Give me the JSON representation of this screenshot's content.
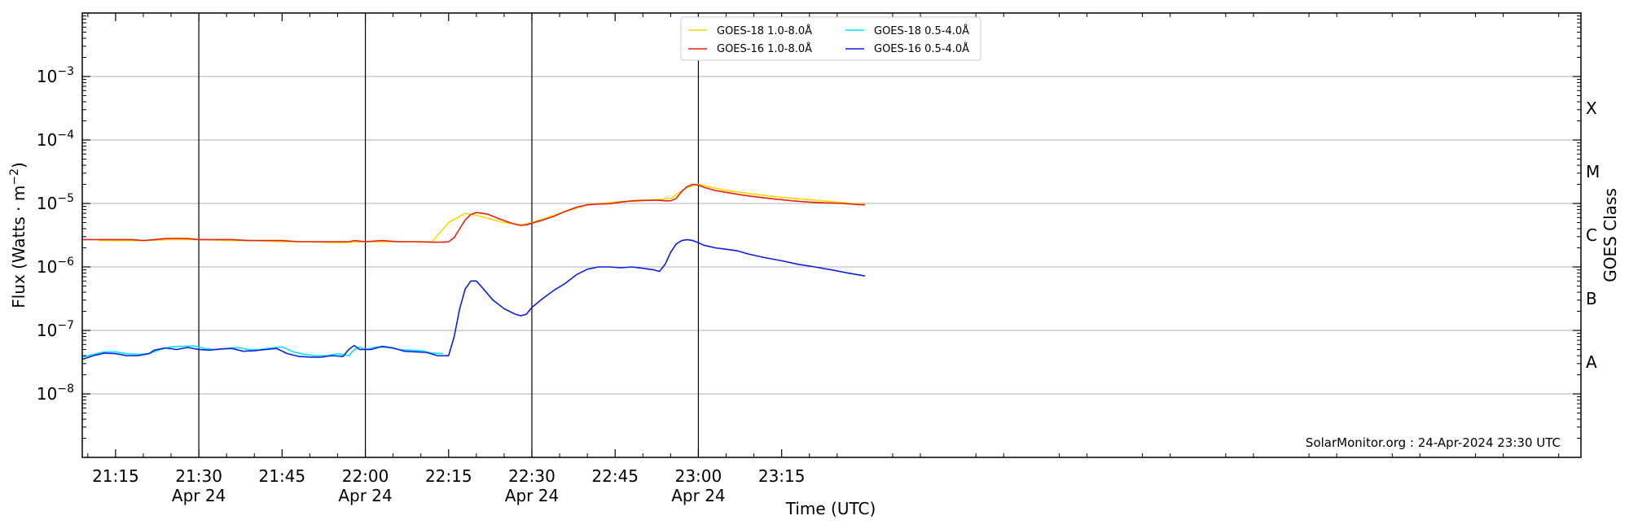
{
  "chart_data": {
    "type": "line",
    "xlabel": "Time (UTC)",
    "ylabel": "Flux (Watts · m⁻²)",
    "ylabel_right": "GOES Class",
    "watermark": "SolarMonitor.org : 24-Apr-2024 23:30 UTC",
    "x_unit": "minutes after 21:00 UTC, 24-Apr-2024",
    "xlim": [
      9,
      279
    ],
    "ylim": [
      1e-09,
      0.01
    ],
    "y_scale": "log",
    "grid": "horizontal at decades",
    "legend_position": "top-center",
    "x_ticks": [
      {
        "value": 15,
        "label": "21:15",
        "date": ""
      },
      {
        "value": 30,
        "label": "21:30",
        "date": "Apr 24"
      },
      {
        "value": 45,
        "label": "21:45",
        "date": ""
      },
      {
        "value": 60,
        "label": "22:00",
        "date": "Apr 24"
      },
      {
        "value": 75,
        "label": "22:15",
        "date": ""
      },
      {
        "value": 90,
        "label": "22:30",
        "date": "Apr 24"
      },
      {
        "value": 105,
        "label": "22:45",
        "date": ""
      },
      {
        "value": 120,
        "label": "23:00",
        "date": "Apr 24"
      },
      {
        "value": 135,
        "label": "23:15",
        "date": ""
      }
    ],
    "y_ticks": [
      {
        "exp": -8,
        "label_base": "10",
        "label_exp": "−8"
      },
      {
        "exp": -7,
        "label_base": "10",
        "label_exp": "−7"
      },
      {
        "exp": -6,
        "label_base": "10",
        "label_exp": "−6"
      },
      {
        "exp": -5,
        "label_base": "10",
        "label_exp": "−5"
      },
      {
        "exp": -4,
        "label_base": "10",
        "label_exp": "−4"
      },
      {
        "exp": -3,
        "label_base": "10",
        "label_exp": "−3"
      }
    ],
    "vlines": [
      30,
      60,
      90,
      120
    ],
    "goes_classes": [
      {
        "label": "A",
        "exp": -7.5
      },
      {
        "label": "B",
        "exp": -6.5
      },
      {
        "label": "C",
        "exp": -5.5
      },
      {
        "label": "M",
        "exp": -4.5
      },
      {
        "label": "X",
        "exp": -3.5
      }
    ],
    "series": [
      {
        "name": "GOES-18 1.0-8.0Å",
        "color": "#ffd700",
        "x": [
          12,
          20,
          25,
          30,
          35,
          40,
          45,
          50,
          55,
          60,
          65,
          70,
          72,
          75,
          78,
          80,
          85,
          88,
          90,
          95,
          100,
          105,
          110,
          115,
          118,
          120,
          125,
          130,
          135,
          140,
          145,
          150
        ],
        "y": [
          2.6e-06,
          2.6e-06,
          2.7e-06,
          2.7e-06,
          2.6e-06,
          2.6e-06,
          2.5e-06,
          2.5e-06,
          2.4e-06,
          2.5e-06,
          2.5e-06,
          2.5e-06,
          2.5e-06,
          5e-06,
          7e-06,
          6.5e-06,
          5e-06,
          4.6e-06,
          5e-06,
          7e-06,
          9.5e-06,
          1.05e-05,
          1.1e-05,
          1.2e-05,
          1.8e-05,
          2e-05,
          1.6e-05,
          1.4e-05,
          1.25e-05,
          1.15e-05,
          1.05e-05,
          9.6e-06
        ]
      },
      {
        "name": "GOES-16 1.0-8.0Å",
        "color": "#e8200f",
        "x": [
          9,
          12,
          15,
          18,
          20,
          22,
          24,
          26,
          28,
          30,
          33,
          36,
          39,
          42,
          45,
          48,
          51,
          54,
          57,
          58,
          60,
          63,
          66,
          69,
          72,
          74,
          75,
          76,
          77,
          78,
          79,
          80,
          82,
          84,
          86,
          87,
          88,
          89,
          90,
          92,
          94,
          96,
          98,
          100,
          102,
          104,
          106,
          108,
          110,
          112,
          113,
          114,
          115,
          116,
          117,
          118,
          119,
          120,
          121,
          123,
          125,
          128,
          131,
          134,
          137,
          140,
          143,
          146,
          149,
          150
        ],
        "y": [
          2.7e-06,
          2.7e-06,
          2.7e-06,
          2.7e-06,
          2.6e-06,
          2.7e-06,
          2.8e-06,
          2.8e-06,
          2.8e-06,
          2.7e-06,
          2.7e-06,
          2.7e-06,
          2.6e-06,
          2.6e-06,
          2.6e-06,
          2.5e-06,
          2.5e-06,
          2.5e-06,
          2.5e-06,
          2.6e-06,
          2.5e-06,
          2.6e-06,
          2.5e-06,
          2.5e-06,
          2.45e-06,
          2.45e-06,
          2.5e-06,
          2.9e-06,
          4e-06,
          5.5e-06,
          6.7e-06,
          7.2e-06,
          6.8e-06,
          5.8e-06,
          5e-06,
          4.7e-06,
          4.5e-06,
          4.6e-06,
          4.9e-06,
          5.5e-06,
          6.3e-06,
          7.5e-06,
          8.7e-06,
          9.5e-06,
          9.8e-06,
          9.9e-06,
          1.05e-05,
          1.1e-05,
          1.12e-05,
          1.13e-05,
          1.12e-05,
          1.1e-05,
          1.1e-05,
          1.2e-05,
          1.55e-05,
          1.85e-05,
          2e-05,
          1.95e-05,
          1.8e-05,
          1.6e-05,
          1.5e-05,
          1.35e-05,
          1.25e-05,
          1.17e-05,
          1.1e-05,
          1.05e-05,
          1.02e-05,
          1e-05,
          9.6e-06,
          9.5e-06
        ]
      },
      {
        "name": "GOES-18 0.5-4.0Å",
        "color": "#00e5ff",
        "x": [
          9,
          11,
          13,
          15,
          17,
          19,
          21,
          23,
          25,
          27,
          29,
          31,
          33,
          35,
          37,
          39,
          41,
          43,
          45,
          47,
          49,
          51,
          53,
          55,
          57,
          58,
          59,
          60,
          62,
          64,
          66,
          68,
          70,
          72,
          74
        ],
        "y": [
          3.8e-08,
          4.2e-08,
          4.6e-08,
          4.6e-08,
          4.3e-08,
          4.2e-08,
          4.3e-08,
          5e-08,
          5.5e-08,
          5.6e-08,
          5.7e-08,
          5.2e-08,
          5e-08,
          5.2e-08,
          5.4e-08,
          5e-08,
          5e-08,
          5.3e-08,
          5.5e-08,
          4.6e-08,
          4.2e-08,
          4e-08,
          4e-08,
          4.3e-08,
          4e-08,
          5e-08,
          5.5e-08,
          5e-08,
          5.5e-08,
          5.4e-08,
          5e-08,
          4.9e-08,
          4.8e-08,
          4.4e-08,
          4.3e-08
        ]
      },
      {
        "name": "GOES-16 0.5-4.0Å",
        "color": "#0a1fe0",
        "x": [
          9,
          11,
          13,
          15,
          17,
          19,
          21,
          22,
          24,
          26,
          28,
          30,
          32,
          34,
          36,
          38,
          40,
          42,
          44,
          46,
          48,
          50,
          52,
          54,
          56,
          57,
          58,
          59,
          60,
          61,
          63,
          65,
          67,
          69,
          71,
          73,
          75,
          76,
          77,
          78,
          79,
          80,
          81,
          83,
          85,
          87,
          88,
          89,
          90,
          92,
          94,
          96,
          98,
          100,
          102,
          104,
          106,
          108,
          110,
          112,
          113,
          114,
          115,
          116,
          117,
          118,
          119,
          120,
          121,
          123,
          125,
          127,
          129,
          132,
          135,
          138,
          141,
          144,
          147,
          150
        ],
        "y": [
          3.5e-08,
          4e-08,
          4.4e-08,
          4.3e-08,
          4e-08,
          4e-08,
          4.3e-08,
          4.9e-08,
          5.3e-08,
          5e-08,
          5.4e-08,
          5e-08,
          4.9e-08,
          5.1e-08,
          5.2e-08,
          4.7e-08,
          4.8e-08,
          5e-08,
          5.2e-08,
          4.3e-08,
          3.9e-08,
          3.8e-08,
          3.8e-08,
          4e-08,
          3.9e-08,
          5e-08,
          5.8e-08,
          5e-08,
          5e-08,
          5e-08,
          5.6e-08,
          5.3e-08,
          4.7e-08,
          4.6e-08,
          4.5e-08,
          4e-08,
          4e-08,
          8e-08,
          2.2e-07,
          4.5e-07,
          6e-07,
          6e-07,
          4.8e-07,
          3e-07,
          2.2e-07,
          1.8e-07,
          1.7e-07,
          1.8e-07,
          2.3e-07,
          3.2e-07,
          4.3e-07,
          5.5e-07,
          7.5e-07,
          9.2e-07,
          1e-06,
          1e-06,
          9.7e-07,
          1e-06,
          9.5e-07,
          9e-07,
          8.5e-07,
          1.1e-06,
          1.7e-06,
          2.3e-06,
          2.6e-06,
          2.7e-06,
          2.6e-06,
          2.4e-06,
          2.2e-06,
          2e-06,
          1.9e-06,
          1.8e-06,
          1.6e-06,
          1.4e-06,
          1.25e-06,
          1.1e-06,
          1e-06,
          9e-07,
          8e-07,
          7.2e-07
        ]
      }
    ]
  }
}
